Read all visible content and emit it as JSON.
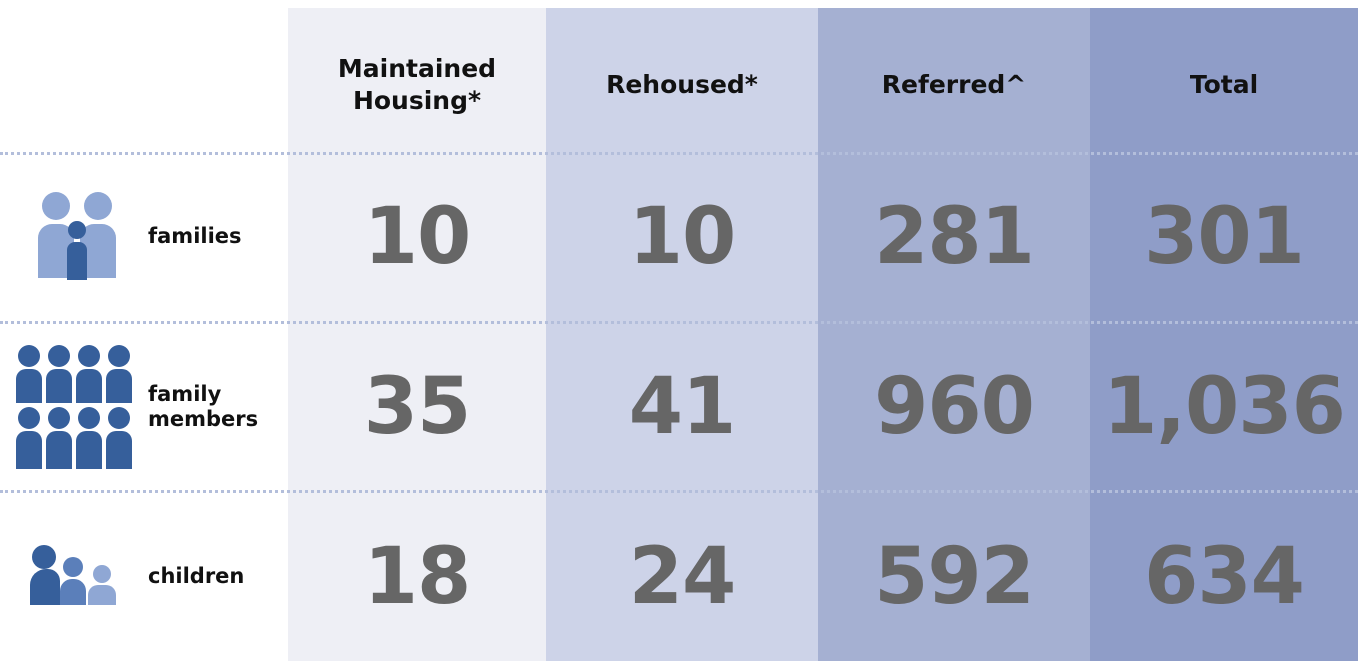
{
  "table": {
    "headers": [
      "Maintained Housing*",
      "Rehoused*",
      "Referred^",
      "Total"
    ],
    "rows": [
      {
        "label": "families",
        "cells": [
          "10",
          "10",
          "281",
          "301"
        ]
      },
      {
        "label": "family members",
        "cells": [
          "35",
          "41",
          "960",
          "1,036"
        ]
      },
      {
        "label": "children",
        "cells": [
          "18",
          "24",
          "592",
          "634"
        ]
      }
    ]
  }
}
